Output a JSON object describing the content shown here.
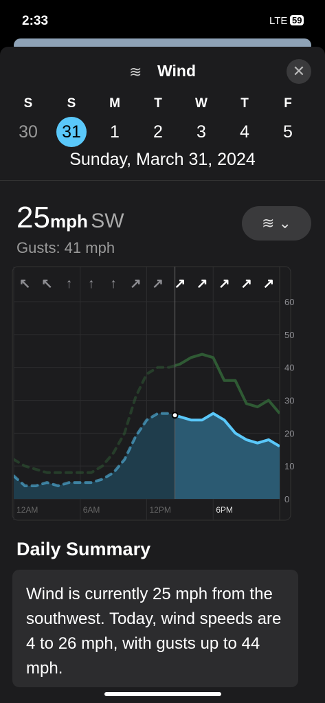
{
  "status_bar": {
    "time": "2:33",
    "network": "LTE",
    "battery": "59"
  },
  "header": {
    "title": "Wind"
  },
  "days": [
    {
      "letter": "S",
      "date": "30"
    },
    {
      "letter": "S",
      "date": "31"
    },
    {
      "letter": "M",
      "date": "1"
    },
    {
      "letter": "T",
      "date": "2"
    },
    {
      "letter": "W",
      "date": "3"
    },
    {
      "letter": "T",
      "date": "4"
    },
    {
      "letter": "F",
      "date": "5"
    }
  ],
  "selected_date": "Sunday, March 31, 2024",
  "current": {
    "speed": "25",
    "unit": "mph",
    "direction": "SW",
    "gusts": "Gusts: 41 mph"
  },
  "chart_data": {
    "type": "line",
    "x": [
      0,
      1,
      2,
      3,
      4,
      5,
      6,
      7,
      8,
      9,
      10,
      11,
      12,
      13,
      14,
      15,
      16,
      17,
      18,
      19,
      20,
      21,
      22,
      23,
      24
    ],
    "series": [
      {
        "color": "#5ac8fa",
        "values": [
          7,
          4,
          4,
          5,
          4,
          5,
          5,
          5,
          6,
          8,
          12,
          19,
          24,
          26,
          26,
          25,
          24,
          24,
          26,
          24,
          20,
          18,
          17,
          18,
          16
        ]
      },
      {
        "color": "#2f5a34",
        "values": [
          12,
          10,
          9,
          8,
          8,
          8,
          8,
          8,
          10,
          14,
          20,
          31,
          38,
          40,
          40,
          41,
          43,
          44,
          43,
          36,
          36,
          29,
          28,
          30,
          26
        ]
      }
    ],
    "now_hour": 14.55,
    "directions": [
      "↖",
      "↖",
      "↑",
      "↑",
      "↑",
      "↗",
      "↗",
      "↗",
      "↗",
      "↗",
      "↗",
      "↗"
    ],
    "xlim": [
      0,
      24
    ],
    "ylim": [
      0,
      60
    ],
    "xticks": [
      {
        "value": 0,
        "label": "12AM"
      },
      {
        "value": 6,
        "label": "6AM"
      },
      {
        "value": 12,
        "label": "12PM"
      },
      {
        "value": 18,
        "label": "6PM"
      }
    ],
    "yticks": [
      0,
      10,
      20,
      30,
      40,
      50,
      60
    ],
    "grid": true
  },
  "summary": {
    "title": "Daily Summary",
    "text": "Wind is currently 25 mph from the southwest. Today, wind speeds are 4 to 26 mph, with gusts up to 44 mph."
  }
}
